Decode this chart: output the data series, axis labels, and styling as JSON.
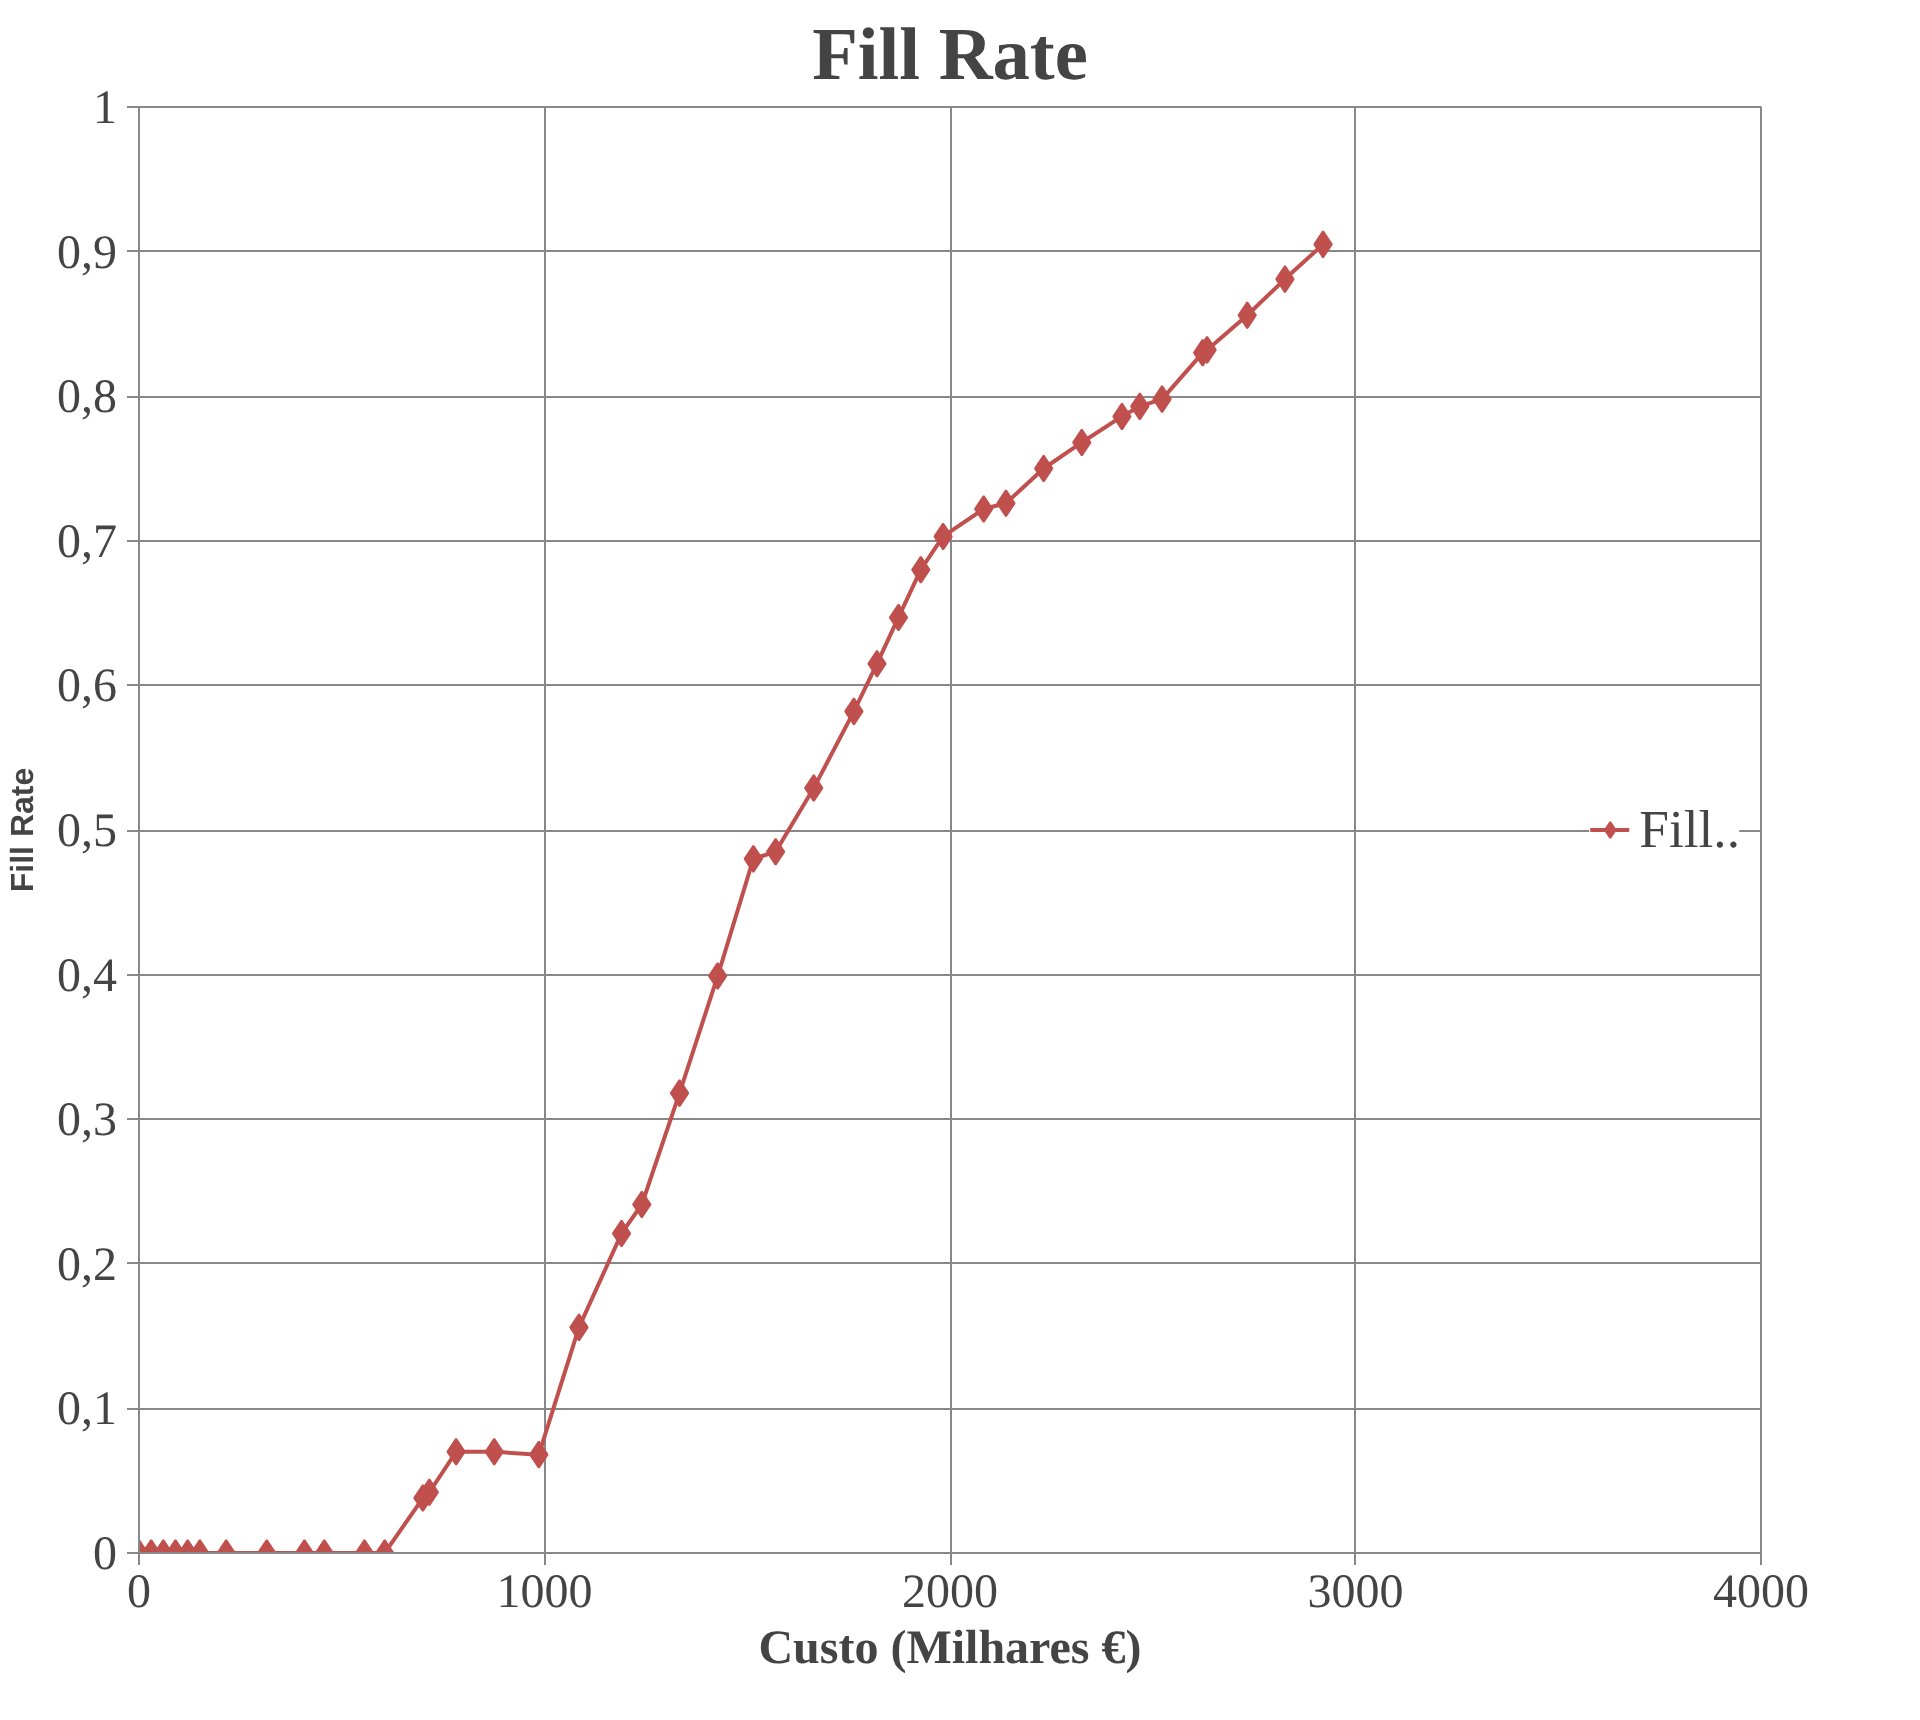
{
  "chart_data": {
    "type": "line",
    "title": "Fill Rate",
    "xlabel": "Custo (Milhares €)",
    "ylabel": "Fill Rate",
    "x": [
      0,
      30,
      60,
      90,
      120,
      150,
      215,
      315,
      408,
      457,
      556,
      606,
      700,
      716,
      782,
      876,
      986,
      1085,
      1190,
      1240,
      1333,
      1427,
      1515,
      1570,
      1664,
      1763,
      1820,
      1873,
      1928,
      1983,
      2083,
      2138,
      2231,
      2325,
      2424,
      2468,
      2523,
      2623,
      2634,
      2733,
      2826,
      2920
    ],
    "series": [
      {
        "name": "Fill..",
        "color": "#c0504d",
        "values": [
          0,
          0,
          0,
          0,
          0,
          0,
          0,
          0,
          0,
          0,
          0,
          0,
          0.038,
          0.042,
          0.07,
          0.07,
          0.068,
          0.156,
          0.221,
          0.241,
          0.318,
          0.399,
          0.48,
          0.485,
          0.529,
          0.582,
          0.615,
          0.647,
          0.68,
          0.703,
          0.722,
          0.726,
          0.75,
          0.768,
          0.786,
          0.793,
          0.798,
          0.83,
          0.832,
          0.856,
          0.881,
          0.905
        ]
      }
    ],
    "xlim": [
      0,
      4000
    ],
    "xticks": [
      0,
      1000,
      2000,
      3000,
      4000
    ],
    "ylim": [
      0,
      1
    ],
    "yticks": [
      0,
      {
        "value": 0.1,
        "label": "0,1"
      },
      {
        "value": 0.2,
        "label": "0,2"
      },
      {
        "value": 0.3,
        "label": "0,3"
      },
      {
        "value": 0.4,
        "label": "0,4"
      },
      {
        "value": 0.5,
        "label": "0,5"
      },
      {
        "value": 0.6,
        "label": "0,6"
      },
      {
        "value": 0.7,
        "label": "0,7"
      },
      {
        "value": 0.8,
        "label": "0,8"
      },
      {
        "value": 0.9,
        "label": "0,9"
      },
      1
    ],
    "grid": true,
    "legend": "right",
    "marker": "diamond",
    "line_style": "solid"
  }
}
